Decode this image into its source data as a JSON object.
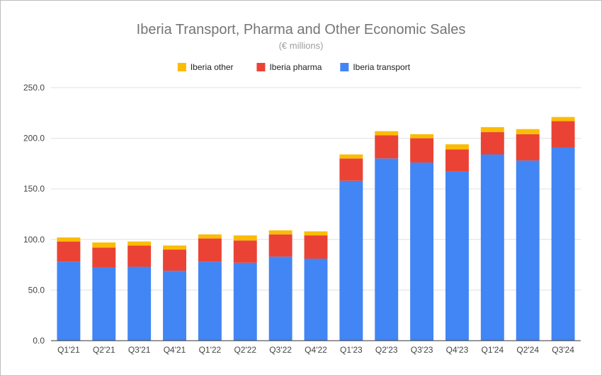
{
  "chart_data": {
    "type": "bar",
    "stacked": true,
    "title": "Iberia Transport, Pharma and Other Economic Sales",
    "subtitle": "(€ millions)",
    "xlabel": "",
    "ylabel": "",
    "ylim": [
      0,
      250
    ],
    "yticks": [
      "0.0",
      "50.0",
      "100.0",
      "150.0",
      "200.0",
      "250.0"
    ],
    "ytick_values": [
      0,
      50,
      100,
      150,
      200,
      250
    ],
    "grid": true,
    "legend_position": "top",
    "categories": [
      "Q1'21",
      "Q2'21",
      "Q3'21",
      "Q4'21",
      "Q1'22",
      "Q2'22",
      "Q3'22",
      "Q4'22",
      "Q1'23",
      "Q2'23",
      "Q3'23",
      "Q4'23",
      "Q1'24",
      "Q2'24",
      "Q3'24"
    ],
    "series": [
      {
        "name": "Iberia transport",
        "color": "#4285f4",
        "values": [
          78,
          72,
          73,
          69,
          78,
          77,
          83,
          81,
          158,
          180,
          176,
          167,
          184,
          178,
          191
        ]
      },
      {
        "name": "Iberia pharma",
        "color": "#ea4335",
        "values": [
          20,
          20,
          21,
          21,
          23,
          22,
          22,
          23,
          22,
          23,
          24,
          22,
          22,
          26,
          26
        ]
      },
      {
        "name": "Iberia other",
        "color": "#fbbc04",
        "values": [
          4,
          5,
          4,
          4,
          4,
          5,
          4,
          4,
          4,
          4,
          4,
          5,
          5,
          5,
          4
        ]
      }
    ],
    "legend_order": [
      "Iberia other",
      "Iberia pharma",
      "Iberia transport"
    ]
  }
}
